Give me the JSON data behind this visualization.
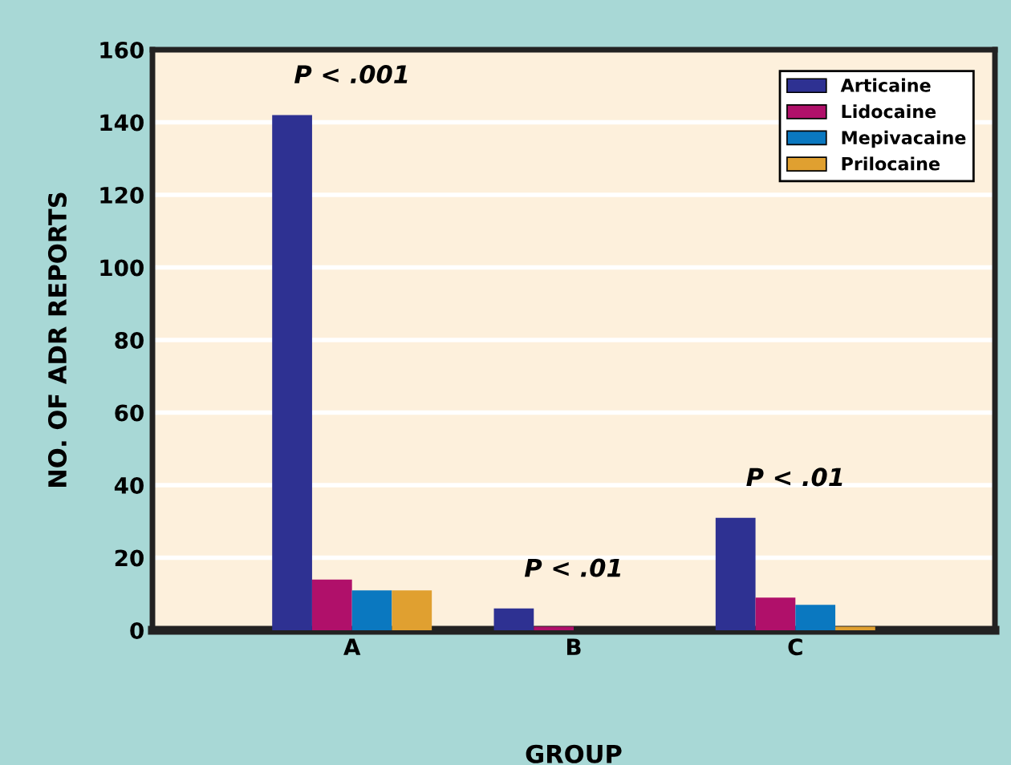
{
  "chart_data": {
    "type": "bar",
    "xlabel": "GROUP",
    "ylabel": "NO. OF ADR REPORTS",
    "categories": [
      "A",
      "B",
      "C"
    ],
    "series": [
      {
        "name": "Articaine",
        "color": "#2e3192",
        "values": [
          142,
          6,
          31
        ]
      },
      {
        "name": "Lidocaine",
        "color": "#b0106a",
        "values": [
          14,
          1,
          9
        ]
      },
      {
        "name": "Mepivacaine",
        "color": "#0a78c0",
        "values": [
          11,
          0,
          7
        ]
      },
      {
        "name": "Prilocaine",
        "color": "#e0a030",
        "values": [
          11,
          0,
          1
        ]
      }
    ],
    "ylim": [
      0,
      160
    ],
    "yticks": [
      0,
      20,
      40,
      60,
      80,
      100,
      120,
      140,
      160
    ],
    "grid": "y",
    "legend": "top right",
    "annotations": [
      "P < .001",
      "P < .01",
      "P < .01"
    ]
  }
}
